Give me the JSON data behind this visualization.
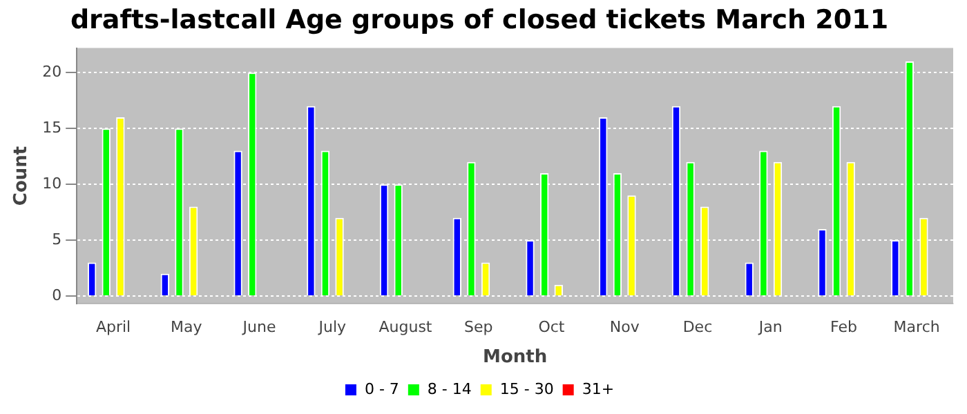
{
  "chart_data": {
    "type": "bar",
    "title": "drafts-lastcall Age groups of closed tickets March 2011",
    "xlabel": "Month",
    "ylabel": "Count",
    "categories": [
      "April",
      "May",
      "June",
      "July",
      "August",
      "Sep",
      "Oct",
      "Nov",
      "Dec",
      "Jan",
      "Feb",
      "March"
    ],
    "series": [
      {
        "name": "0 - 7",
        "color": "#0000ff",
        "values": [
          3,
          2,
          13,
          17,
          10,
          7,
          5,
          16,
          17,
          3,
          6,
          5
        ]
      },
      {
        "name": "8 - 14",
        "color": "#00ff00",
        "values": [
          15,
          15,
          20,
          13,
          10,
          12,
          11,
          11,
          12,
          13,
          17,
          21
        ]
      },
      {
        "name": "15 - 30",
        "color": "#ffff00",
        "values": [
          16,
          8,
          0,
          7,
          0,
          3,
          1,
          9,
          8,
          12,
          12,
          7
        ]
      },
      {
        "name": "31+",
        "color": "#ff0000",
        "values": [
          0,
          0,
          0,
          0,
          0,
          0,
          0,
          0,
          0,
          0,
          0,
          0
        ]
      }
    ],
    "ylim": [
      -0.7,
      22.2
    ],
    "yticks": [
      0,
      5,
      10,
      15,
      20
    ],
    "grid": "y",
    "legend": "bottom"
  }
}
